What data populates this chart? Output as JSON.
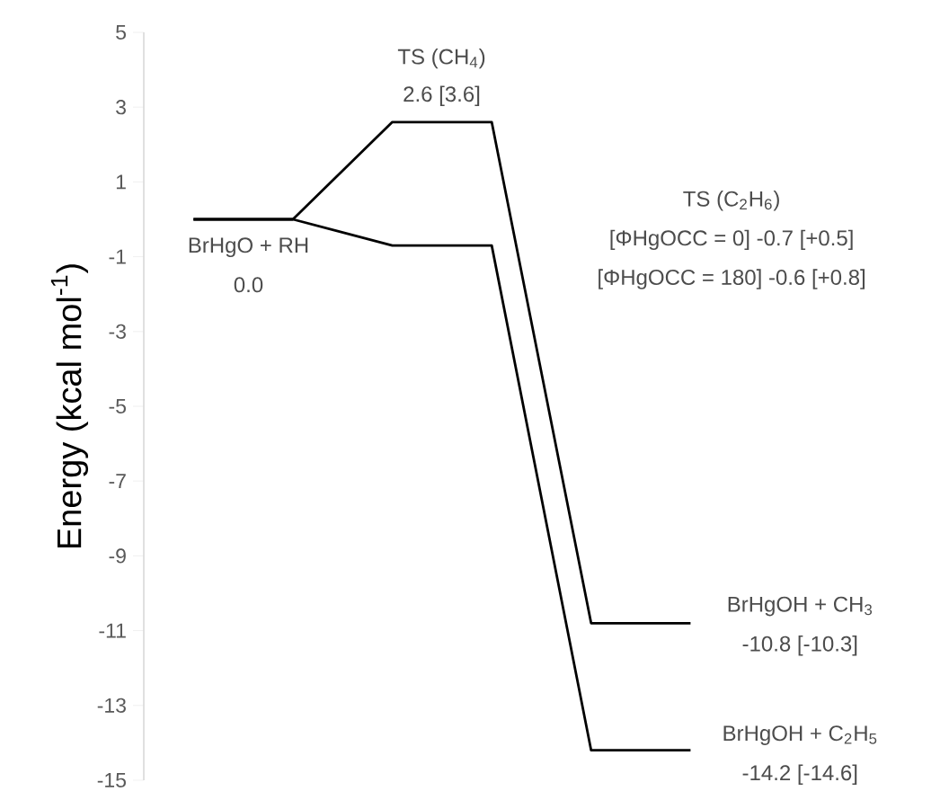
{
  "chart_data": {
    "type": "line",
    "ylabel": "Energy (kcal mol$^{-1}$)",
    "ylim": [
      -15,
      5
    ],
    "yticks": [
      -15,
      -13,
      -11,
      -9,
      -7,
      -5,
      -3,
      -1,
      1,
      3,
      5
    ],
    "tick_labels": "y",
    "marker": "none",
    "categories": [
      null,
      null,
      null,
      null,
      null,
      null
    ],
    "series": [
      {
        "values": [
          0.0,
          0.0,
          2.6,
          2.6,
          -10.8,
          -10.8
        ],
        "color": "#000000"
      },
      {
        "values": [
          0.0,
          0.0,
          -0.7,
          -0.7,
          -14.2,
          -14.2
        ],
        "color": "#000000"
      }
    ],
    "annotations": [
      "TS (CH$_{4}$)",
      "2.6 [3.6]",
      "BrHgO + RH",
      "0.0",
      "TS (C$_{2}$H$_{6}$)",
      "[ΦHgOCC = 0] -0.7 [+0.5]",
      "[ΦHgOCC = 180] -0.6 [+0.8]",
      "BrHgOH + CH$_{3}$",
      "-10.8 [-10.3]",
      "BrHgOH + C$_{2}$H$_{5}$",
      "-14.2 [-14.6]"
    ]
  }
}
